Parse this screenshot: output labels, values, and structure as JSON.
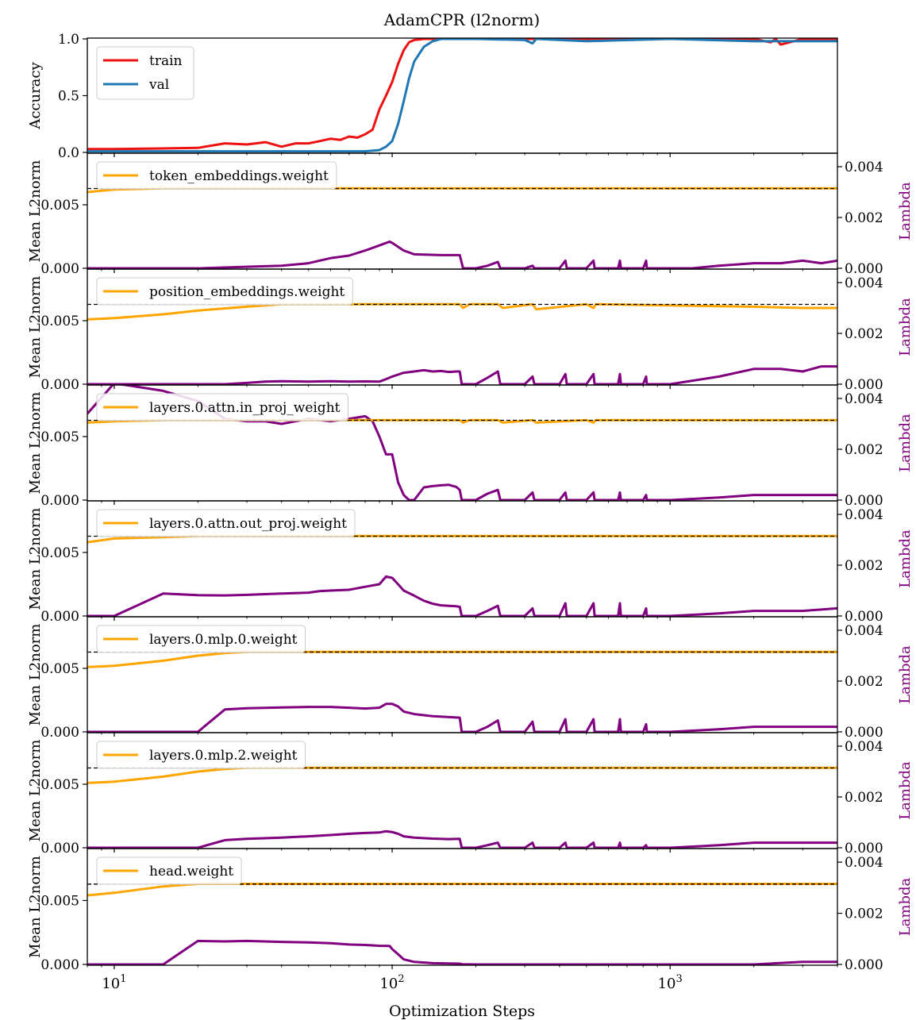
{
  "figure": {
    "title": "AdamCPR (l2norm)",
    "xlabel": "Optimization Steps",
    "colors": {
      "train": "#ee1111",
      "val": "#1f77b4",
      "l2norm": "#ffa500",
      "lambda": "#800080",
      "target": "#000000"
    }
  },
  "chart_data": [
    {
      "type": "line",
      "title": "AdamCPR (l2norm)",
      "ylabel": "Accuracy",
      "xscale": "log",
      "xlim": [
        8,
        4000
      ],
      "ylim": [
        0,
        1
      ],
      "yticks": [
        "0.0",
        "0.5",
        "1.0"
      ],
      "legend": "top-left",
      "series": [
        {
          "name": "train",
          "x": [
            8,
            10,
            15,
            20,
            25,
            30,
            35,
            40,
            45,
            50,
            55,
            60,
            65,
            70,
            75,
            80,
            85,
            90,
            95,
            100,
            105,
            110,
            115,
            120,
            130,
            150,
            200,
            300,
            500,
            1000,
            2000,
            2300,
            2400,
            2500,
            3000,
            4000
          ],
          "y": [
            0.03,
            0.03,
            0.035,
            0.04,
            0.08,
            0.07,
            0.09,
            0.05,
            0.08,
            0.08,
            0.1,
            0.12,
            0.11,
            0.14,
            0.13,
            0.16,
            0.2,
            0.38,
            0.5,
            0.62,
            0.78,
            0.9,
            0.97,
            0.99,
            1.0,
            1.0,
            1.0,
            1.0,
            1.0,
            1.0,
            1.0,
            0.97,
            1.0,
            0.95,
            1.0,
            1.0
          ]
        },
        {
          "name": "val",
          "x": [
            8,
            20,
            50,
            80,
            90,
            95,
            100,
            105,
            110,
            115,
            120,
            130,
            140,
            150,
            200,
            300,
            320,
            330,
            500,
            1000,
            2000,
            3000,
            4000
          ],
          "y": [
            0.01,
            0.01,
            0.01,
            0.01,
            0.02,
            0.05,
            0.1,
            0.25,
            0.45,
            0.65,
            0.8,
            0.93,
            0.98,
            1.0,
            1.0,
            0.99,
            0.96,
            1.0,
            0.98,
            1.0,
            0.98,
            0.98,
            0.98
          ]
        }
      ]
    },
    {
      "type": "line",
      "legend_label": "token_embeddings.weight",
      "ylabel": "Mean L2norm",
      "ylabel_right": "Lambda",
      "xscale": "log",
      "xlim": [
        8,
        4000
      ],
      "ylim": [
        0,
        0.009
      ],
      "ylim_right": [
        0,
        0.0045
      ],
      "yticks": [
        "0.000",
        "0.005"
      ],
      "yticks_right": [
        "0.000",
        "0.002",
        "0.004"
      ],
      "target": 0.00628,
      "l2norm": {
        "x": [
          8,
          10,
          15,
          20,
          100,
          4000
        ],
        "y": [
          0.006,
          0.0062,
          0.0063,
          0.0063,
          0.0063,
          0.0063
        ]
      },
      "lambda": {
        "x": [
          8,
          20,
          40,
          50,
          60,
          70,
          80,
          90,
          98,
          100,
          110,
          120,
          150,
          175,
          180,
          200,
          220,
          240,
          245,
          300,
          320,
          325,
          400,
          420,
          425,
          500,
          530,
          535,
          650,
          660,
          665,
          800,
          820,
          825,
          1000,
          1200,
          1500,
          2000,
          2500,
          3000,
          3500,
          4000
        ],
        "y": [
          0,
          0,
          0.0001,
          0.0002,
          0.0004,
          0.0005,
          0.0007,
          0.0009,
          0.00105,
          0.001,
          0.0007,
          0.00055,
          0.00052,
          0.00052,
          0,
          0,
          0.0001,
          0.00025,
          0,
          0,
          0.0001,
          0,
          0,
          0.0003,
          0,
          0,
          0.0003,
          0,
          0,
          0.0003,
          0,
          0,
          0.0003,
          0,
          0,
          0,
          0.0001,
          0.0002,
          0.0002,
          0.0003,
          0.0002,
          0.0003
        ]
      }
    },
    {
      "type": "line",
      "legend_label": "position_embeddings.weight",
      "ylabel": "Mean L2norm",
      "ylabel_right": "Lambda",
      "xscale": "log",
      "xlim": [
        8,
        4000
      ],
      "ylim": [
        0,
        0.009
      ],
      "ylim_right": [
        0,
        0.0045
      ],
      "yticks": [
        "0.000",
        "0.005"
      ],
      "yticks_right": [
        "0.000",
        "0.002",
        "0.004"
      ],
      "target": 0.00628,
      "l2norm": {
        "x": [
          8,
          10,
          15,
          20,
          30,
          40,
          60,
          80,
          100,
          175,
          180,
          190,
          240,
          250,
          320,
          330,
          500,
          530,
          540,
          1000,
          2000,
          3000,
          4000
        ],
        "y": [
          0.0051,
          0.0052,
          0.0055,
          0.0058,
          0.0061,
          0.0063,
          0.0063,
          0.0063,
          0.0063,
          0.0063,
          0.006,
          0.0063,
          0.0063,
          0.006,
          0.0063,
          0.0059,
          0.0063,
          0.006,
          0.0063,
          0.0062,
          0.0061,
          0.006,
          0.006
        ]
      },
      "lambda": {
        "x": [
          8,
          25,
          30,
          35,
          40,
          50,
          60,
          70,
          80,
          90,
          95,
          100,
          110,
          120,
          130,
          140,
          150,
          160,
          170,
          175,
          178,
          200,
          220,
          240,
          245,
          300,
          320,
          325,
          400,
          420,
          425,
          500,
          530,
          535,
          650,
          660,
          665,
          800,
          820,
          825,
          1000,
          1500,
          2000,
          2500,
          3000,
          3500,
          4000
        ],
        "y": [
          0,
          0,
          5e-05,
          0.0001,
          0.00012,
          0.0001,
          0.00012,
          0.0001,
          0.00011,
          0.0001,
          0.0002,
          0.0003,
          0.00045,
          0.0005,
          0.00055,
          0.0005,
          0.00052,
          0.00048,
          0.0005,
          0.0005,
          0,
          0,
          0.00025,
          0.0005,
          0,
          0,
          0.0003,
          0,
          0,
          0.0004,
          0,
          0,
          0.0004,
          0,
          0,
          0.0004,
          0,
          0,
          0.0003,
          0,
          0,
          0.0003,
          0.0006,
          0.0006,
          0.0005,
          0.0007,
          0.0007
        ]
      }
    },
    {
      "type": "line",
      "legend_label": "layers.0.attn.in_proj_weight",
      "ylabel": "Mean L2norm",
      "ylabel_right": "Lambda",
      "xscale": "log",
      "xlim": [
        8,
        4000
      ],
      "ylim": [
        0,
        0.009
      ],
      "ylim_right": [
        0,
        0.0045
      ],
      "yticks": [
        "0.000",
        "0.005"
      ],
      "yticks_right": [
        "0.000",
        "0.002",
        "0.004"
      ],
      "target": 0.00628,
      "l2norm": {
        "x": [
          8,
          10,
          15,
          20,
          100,
          175,
          180,
          190,
          240,
          250,
          320,
          330,
          500,
          530,
          540,
          1000,
          2000,
          4000
        ],
        "y": [
          0.0061,
          0.0062,
          0.0063,
          0.0063,
          0.0063,
          0.0063,
          0.0061,
          0.0063,
          0.0063,
          0.0061,
          0.0063,
          0.0061,
          0.0063,
          0.0061,
          0.0063,
          0.0063,
          0.0063,
          0.0063
        ]
      },
      "lambda": {
        "x": [
          8,
          10,
          15,
          20,
          25,
          30,
          35,
          40,
          50,
          60,
          70,
          80,
          85,
          90,
          95,
          100,
          105,
          110,
          115,
          120,
          130,
          140,
          150,
          160,
          170,
          175,
          178,
          200,
          220,
          240,
          245,
          300,
          320,
          325,
          400,
          420,
          425,
          500,
          530,
          535,
          650,
          660,
          665,
          800,
          820,
          825,
          1000,
          1500,
          2000,
          3000,
          4000
        ],
        "y": [
          0.0034,
          0.0046,
          0.0043,
          0.0039,
          0.0032,
          0.0031,
          0.0031,
          0.003,
          0.0032,
          0.0031,
          0.0032,
          0.0033,
          0.0031,
          0.0025,
          0.0018,
          0.0018,
          0.0007,
          0.0002,
          0,
          0,
          0.0005,
          0.00055,
          0.00058,
          0.0006,
          0.00052,
          0.0004,
          0,
          0,
          0.00025,
          0.0004,
          0,
          0,
          0.0003,
          0,
          0,
          0.0003,
          0,
          0,
          0.0003,
          0,
          0,
          0.0003,
          0,
          0,
          0.0002,
          0,
          0,
          0.0001,
          0.0002,
          0.0002,
          0.0002
        ]
      }
    },
    {
      "type": "line",
      "legend_label": "layers.0.attn.out_proj.weight",
      "ylabel": "Mean L2norm",
      "ylabel_right": "Lambda",
      "xscale": "log",
      "xlim": [
        8,
        4000
      ],
      "ylim": [
        0,
        0.009
      ],
      "ylim_right": [
        0,
        0.0045
      ],
      "yticks": [
        "0.000",
        "0.005"
      ],
      "yticks_right": [
        "0.000",
        "0.002",
        "0.004"
      ],
      "target": 0.00628,
      "l2norm": {
        "x": [
          8,
          10,
          15,
          20,
          100,
          4000
        ],
        "y": [
          0.0058,
          0.0061,
          0.0062,
          0.0063,
          0.0063,
          0.0063
        ]
      },
      "lambda": {
        "x": [
          8,
          10,
          15,
          20,
          25,
          30,
          40,
          50,
          55,
          60,
          70,
          80,
          90,
          95,
          100,
          105,
          110,
          120,
          130,
          140,
          150,
          160,
          170,
          175,
          178,
          200,
          220,
          240,
          245,
          300,
          320,
          325,
          400,
          420,
          425,
          500,
          530,
          535,
          650,
          660,
          665,
          800,
          820,
          825,
          1000,
          1500,
          2000,
          3000,
          4000
        ],
        "y": [
          0,
          0,
          0.00088,
          0.00082,
          0.00081,
          0.00083,
          0.00088,
          0.00092,
          0.00098,
          0.001,
          0.00103,
          0.00115,
          0.00125,
          0.00155,
          0.0015,
          0.00125,
          0.001,
          0.0008,
          0.0006,
          0.00048,
          0.00042,
          0.0004,
          0.00038,
          0.00036,
          0,
          0,
          0.0002,
          0.0004,
          0,
          0,
          0.0003,
          0,
          0,
          0.0005,
          0,
          0,
          0.0005,
          0,
          0,
          0.0005,
          0,
          0,
          0.0003,
          0,
          0,
          0.0001,
          0.0002,
          0.0002,
          0.0003
        ]
      }
    },
    {
      "type": "line",
      "legend_label": "layers.0.mlp.0.weight",
      "ylabel": "Mean L2norm",
      "ylabel_right": "Lambda",
      "xscale": "log",
      "xlim": [
        8,
        4000
      ],
      "ylim": [
        0,
        0.009
      ],
      "ylim_right": [
        0,
        0.0045
      ],
      "yticks": [
        "0.000",
        "0.005"
      ],
      "yticks_right": [
        "0.000",
        "0.002",
        "0.004"
      ],
      "target": 0.00628,
      "l2norm": {
        "x": [
          8,
          10,
          15,
          20,
          25,
          30,
          100,
          4000
        ],
        "y": [
          0.0051,
          0.0052,
          0.0056,
          0.006,
          0.0062,
          0.0063,
          0.0063,
          0.0063
        ]
      },
      "lambda": {
        "x": [
          8,
          20,
          25,
          30,
          40,
          50,
          60,
          70,
          80,
          90,
          95,
          100,
          105,
          110,
          120,
          140,
          160,
          175,
          178,
          200,
          220,
          240,
          245,
          300,
          320,
          325,
          400,
          420,
          425,
          500,
          530,
          535,
          650,
          660,
          665,
          800,
          820,
          825,
          1000,
          1500,
          2000,
          3000,
          4000
        ],
        "y": [
          0,
          0,
          0.00088,
          0.00093,
          0.00096,
          0.00098,
          0.00098,
          0.00095,
          0.00092,
          0.00095,
          0.0011,
          0.0011,
          0.001,
          0.0008,
          0.0007,
          0.00062,
          0.00058,
          0.00056,
          0,
          0,
          0.0002,
          0.00045,
          0,
          0,
          0.0004,
          0,
          0,
          0.0005,
          0,
          0,
          0.0005,
          0,
          0,
          0.0005,
          0,
          0,
          0.0003,
          0,
          0,
          0.0001,
          0.0002,
          0.0002,
          0.0002
        ]
      }
    },
    {
      "type": "line",
      "legend_label": "layers.0.mlp.2.weight",
      "ylabel": "Mean L2norm",
      "ylabel_right": "Lambda",
      "xscale": "log",
      "xlim": [
        8,
        4000
      ],
      "ylim": [
        0,
        0.009
      ],
      "ylim_right": [
        0,
        0.0045
      ],
      "yticks": [
        "0.000",
        "0.005"
      ],
      "yticks_right": [
        "0.000",
        "0.002",
        "0.004"
      ],
      "target": 0.00628,
      "l2norm": {
        "x": [
          8,
          10,
          15,
          20,
          25,
          30,
          100,
          4000
        ],
        "y": [
          0.0051,
          0.0052,
          0.0056,
          0.006,
          0.0062,
          0.0063,
          0.0063,
          0.0063
        ]
      },
      "lambda": {
        "x": [
          8,
          20,
          25,
          30,
          40,
          50,
          60,
          70,
          80,
          90,
          95,
          100,
          105,
          110,
          120,
          140,
          160,
          175,
          178,
          200,
          220,
          240,
          245,
          300,
          320,
          325,
          400,
          420,
          425,
          500,
          530,
          535,
          650,
          660,
          665,
          800,
          820,
          825,
          1000,
          1500,
          2000,
          3000,
          4000
        ],
        "y": [
          0,
          0,
          0.0003,
          0.00035,
          0.0004,
          0.00045,
          0.0005,
          0.00055,
          0.00058,
          0.0006,
          0.00065,
          0.00062,
          0.00055,
          0.00045,
          0.0004,
          0.00036,
          0.00034,
          0.00035,
          0,
          0,
          0.0001,
          0.0002,
          0,
          0,
          0.0002,
          0,
          0,
          0.0002,
          0,
          0,
          0.0002,
          0,
          0,
          0.0002,
          0,
          0,
          0.0001,
          0,
          0,
          0.0001,
          0.0002,
          0.0002,
          0.0002
        ]
      }
    },
    {
      "type": "line",
      "legend_label": "head.weight",
      "ylabel": "Mean L2norm",
      "ylabel_right": "Lambda",
      "xlabel": "Optimization Steps",
      "xscale": "log",
      "xlim": [
        8,
        4000
      ],
      "xticks": [
        10,
        100,
        1000
      ],
      "ylim": [
        0,
        0.009
      ],
      "ylim_right": [
        0,
        0.0045
      ],
      "yticks": [
        "0.000",
        "0.005"
      ],
      "yticks_right": [
        "0.000",
        "0.002",
        "0.004"
      ],
      "target": 0.00628,
      "l2norm": {
        "x": [
          8,
          10,
          15,
          20,
          100,
          4000
        ],
        "y": [
          0.0054,
          0.0056,
          0.0061,
          0.0063,
          0.0063,
          0.0063
        ]
      },
      "lambda": {
        "x": [
          8,
          15,
          20,
          25,
          30,
          40,
          50,
          60,
          70,
          80,
          90,
          98,
          100,
          105,
          110,
          120,
          140,
          160,
          175,
          178,
          200,
          300,
          500,
          1000,
          2000,
          3000,
          4000
        ],
        "y": [
          0,
          0,
          0.00092,
          0.0009,
          0.00092,
          0.00088,
          0.00086,
          0.00083,
          0.00078,
          0.00076,
          0.00073,
          0.00072,
          0.0006,
          0.0004,
          0.0002,
          0.0001,
          5e-05,
          4e-05,
          3e-05,
          1e-05,
          0,
          0,
          0,
          0,
          0,
          0.0001,
          0.0001
        ]
      }
    }
  ]
}
